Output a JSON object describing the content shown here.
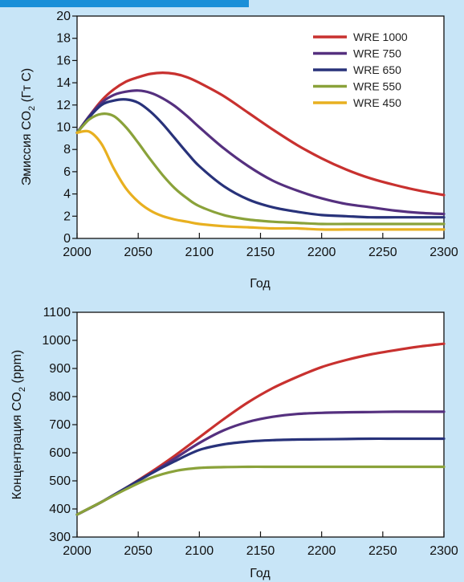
{
  "chart_data": [
    {
      "type": "line",
      "xlabel": "Год",
      "ylabel_main": "Эмиссия CO",
      "ylabel_sub": "2",
      "ylabel_tail": " (Гт С)",
      "xlim": [
        2000,
        2300
      ],
      "ylim": [
        0,
        20
      ],
      "x_ticks": [
        2000,
        2050,
        2100,
        2150,
        2200,
        2250,
        2300
      ],
      "y_ticks": [
        0,
        2,
        4,
        6,
        8,
        10,
        12,
        14,
        16,
        18,
        20
      ],
      "grid": false,
      "legend_position": "top-right",
      "x": [
        2000,
        2010,
        2020,
        2030,
        2040,
        2050,
        2060,
        2070,
        2080,
        2090,
        2100,
        2120,
        2140,
        2160,
        2180,
        2200,
        2220,
        2240,
        2260,
        2280,
        2300
      ],
      "series": [
        {
          "name": "WRE 1000",
          "color": "#c8312f",
          "values": [
            9.5,
            11.0,
            12.4,
            13.4,
            14.1,
            14.5,
            14.8,
            14.9,
            14.8,
            14.5,
            14.0,
            12.8,
            11.3,
            9.8,
            8.4,
            7.2,
            6.2,
            5.4,
            4.8,
            4.3,
            3.9
          ]
        },
        {
          "name": "WRE 750",
          "color": "#55307f",
          "values": [
            9.5,
            11.0,
            12.2,
            12.9,
            13.2,
            13.3,
            13.1,
            12.6,
            11.9,
            11.0,
            10.0,
            8.1,
            6.5,
            5.2,
            4.3,
            3.6,
            3.1,
            2.8,
            2.5,
            2.3,
            2.2
          ]
        },
        {
          "name": "WRE 650",
          "color": "#28327a",
          "values": [
            9.5,
            10.9,
            12.0,
            12.4,
            12.5,
            12.2,
            11.4,
            10.3,
            9.0,
            7.7,
            6.5,
            4.7,
            3.5,
            2.8,
            2.4,
            2.1,
            2.0,
            1.9,
            1.9,
            1.9,
            1.9
          ]
        },
        {
          "name": "WRE 550",
          "color": "#8aa23a",
          "values": [
            9.5,
            10.7,
            11.2,
            11.0,
            10.0,
            8.6,
            7.1,
            5.7,
            4.5,
            3.6,
            2.9,
            2.1,
            1.7,
            1.5,
            1.4,
            1.3,
            1.3,
            1.3,
            1.3,
            1.3,
            1.3
          ]
        },
        {
          "name": "WRE 450",
          "color": "#e8b020",
          "values": [
            9.5,
            9.6,
            8.5,
            6.3,
            4.5,
            3.3,
            2.5,
            2.0,
            1.7,
            1.5,
            1.3,
            1.1,
            1.0,
            0.9,
            0.9,
            0.8,
            0.8,
            0.8,
            0.8,
            0.8,
            0.8
          ]
        }
      ]
    },
    {
      "type": "line",
      "xlabel": "Год",
      "ylabel_main": "Концентрация CO",
      "ylabel_sub": "2",
      "ylabel_tail": " (ppm)",
      "xlim": [
        2000,
        2300
      ],
      "ylim": [
        300,
        1100
      ],
      "x_ticks": [
        2000,
        2050,
        2100,
        2150,
        2200,
        2250,
        2300
      ],
      "y_ticks": [
        300,
        400,
        500,
        600,
        700,
        800,
        900,
        1000,
        1100
      ],
      "grid": false,
      "x": [
        2000,
        2020,
        2040,
        2060,
        2080,
        2100,
        2120,
        2140,
        2160,
        2180,
        2200,
        2220,
        2240,
        2260,
        2280,
        2300
      ],
      "series": [
        {
          "name": "WRE 1000",
          "color": "#c8312f",
          "values": [
            380,
            425,
            475,
            530,
            590,
            655,
            720,
            780,
            830,
            870,
            905,
            930,
            950,
            965,
            978,
            988
          ]
        },
        {
          "name": "WRE 750",
          "color": "#55307f",
          "values": [
            380,
            425,
            475,
            525,
            580,
            635,
            680,
            710,
            728,
            738,
            742,
            744,
            745,
            746,
            746,
            746
          ]
        },
        {
          "name": "WRE 650",
          "color": "#28327a",
          "values": [
            380,
            425,
            475,
            525,
            570,
            610,
            630,
            640,
            645,
            647,
            648,
            649,
            650,
            650,
            650,
            650
          ]
        },
        {
          "name": "WRE 550",
          "color": "#8aa23a",
          "values": [
            380,
            425,
            470,
            510,
            535,
            546,
            549,
            550,
            550,
            550,
            550,
            550,
            550,
            550,
            550,
            550
          ]
        }
      ]
    }
  ]
}
